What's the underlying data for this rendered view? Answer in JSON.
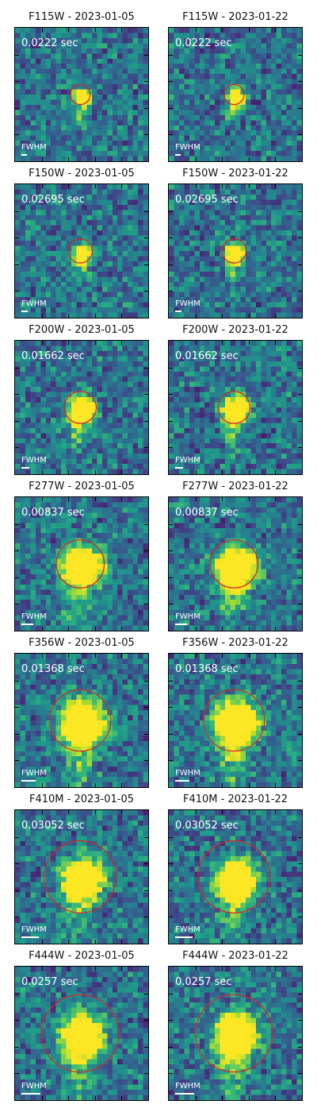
{
  "colors": {
    "ring": "#d62728",
    "overlay_text": "#ffffff",
    "colormap": "viridis"
  },
  "dates": [
    "2023-01-05",
    "2023-01-22"
  ],
  "fwhm_label": "FWHM",
  "rows": [
    {
      "filter": "F115W",
      "exposure": "0.0222 sec",
      "ring_radius": 0.075,
      "source_size": 0.065,
      "fwhm": 0.04
    },
    {
      "filter": "F150W",
      "exposure": "0.02695 sec",
      "ring_radius": 0.09,
      "source_size": 0.075,
      "fwhm": 0.05
    },
    {
      "filter": "F200W",
      "exposure": "0.01662 sec",
      "ring_radius": 0.12,
      "source_size": 0.11,
      "fwhm": 0.06
    },
    {
      "filter": "F277W",
      "exposure": "0.00837 sec",
      "ring_radius": 0.18,
      "source_size": 0.17,
      "fwhm": 0.09
    },
    {
      "filter": "F356W",
      "exposure": "0.01368 sec",
      "ring_radius": 0.23,
      "source_size": 0.19,
      "fwhm": 0.11
    },
    {
      "filter": "F410M",
      "exposure": "0.03052 sec",
      "ring_radius": 0.27,
      "source_size": 0.17,
      "fwhm": 0.13
    },
    {
      "filter": "F444W",
      "exposure": "0.0257 sec",
      "ring_radius": 0.29,
      "source_size": 0.18,
      "fwhm": 0.14
    }
  ]
}
